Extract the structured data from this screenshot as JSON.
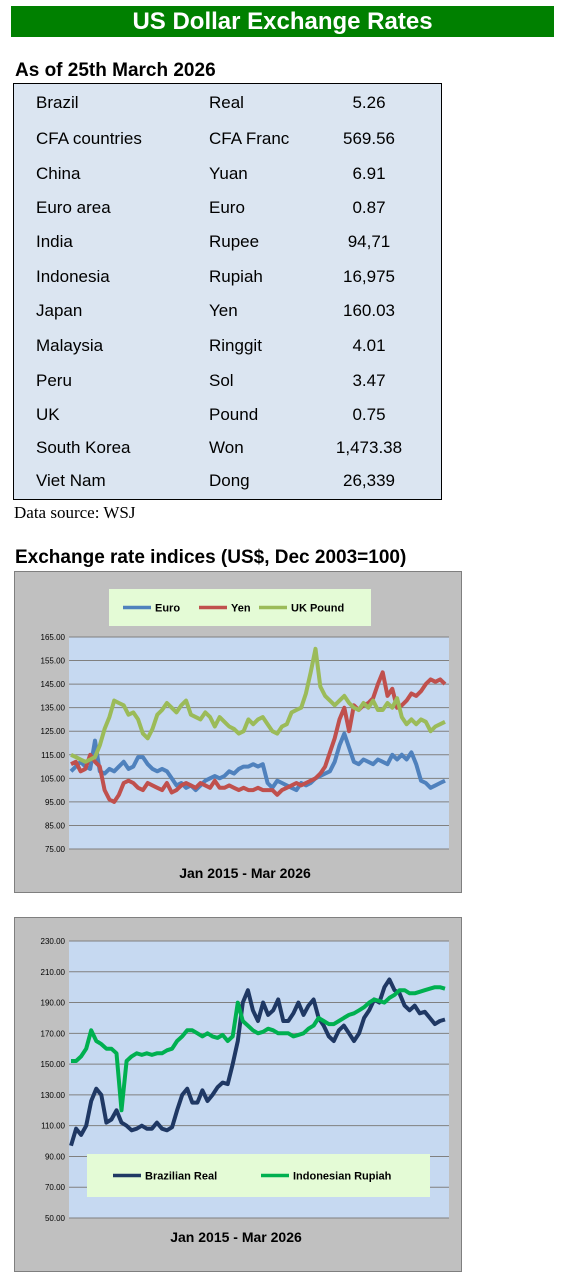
{
  "header": {
    "title": "US Dollar Exchange Rates"
  },
  "rates": {
    "as_of": "As of 25th March 2026",
    "rows": [
      {
        "country": "Brazil",
        "currency": "Real",
        "rate": "5.26"
      },
      {
        "country": "CFA countries",
        "currency": "CFA Franc",
        "rate": "569.56"
      },
      {
        "country": "China",
        "currency": "Yuan",
        "rate": "6.91"
      },
      {
        "country": "Euro area",
        "currency": "Euro",
        "rate": "0.87"
      },
      {
        "country": "India",
        "currency": "Rupee",
        "rate": "94,71"
      },
      {
        "country": "Indonesia",
        "currency": "Rupiah",
        "rate": "16,975"
      },
      {
        "country": "Japan",
        "currency": "Yen",
        "rate": "160.03"
      },
      {
        "country": "Malaysia",
        "currency": "Ringgit",
        "rate": "4.01"
      },
      {
        "country": "Peru",
        "currency": "Sol",
        "rate": "3.47"
      },
      {
        "country": "UK",
        "currency": "Pound",
        "rate": "0.75"
      },
      {
        "country": "South Korea",
        "currency": "Won",
        "rate": "1,473.38"
      },
      {
        "country": "Viet Nam",
        "currency": "Dong",
        "rate": "26,339"
      }
    ],
    "source": "Data source: WSJ"
  },
  "indices_header": "Exchange rate indices (US$, Dec 2003=100)",
  "chart_data": [
    {
      "type": "line",
      "xlabel": "Jan 2015 - Mar  2026",
      "ylim": [
        75,
        165
      ],
      "yticks": [
        75,
        85,
        95,
        105,
        115,
        125,
        135,
        145,
        155,
        165
      ],
      "grid": true,
      "legend_position": "top",
      "series": [
        {
          "name": "Euro",
          "color": "#4f81bd",
          "values": [
            108,
            110,
            112,
            110,
            109,
            121,
            108,
            107,
            109,
            108,
            110,
            112,
            109,
            110,
            114,
            114,
            111,
            109,
            108,
            109,
            108,
            105,
            102,
            103,
            101,
            102,
            100,
            102,
            104,
            105,
            106,
            105,
            106,
            108,
            107,
            109,
            110,
            110,
            111,
            110,
            111,
            103,
            101,
            104,
            103,
            102,
            101,
            100,
            103,
            102,
            103,
            105,
            106,
            107,
            108,
            112,
            119,
            124,
            118,
            112,
            111,
            113,
            112,
            111,
            113,
            112,
            111,
            115,
            113,
            115,
            113,
            116,
            111,
            104,
            103,
            101,
            102,
            103,
            104
          ]
        },
        {
          "name": "Yen",
          "color": "#c0504d",
          "values": [
            111,
            112,
            108,
            109,
            115,
            112,
            110,
            100,
            96,
            95,
            98,
            103,
            104,
            103,
            101,
            100,
            103,
            102,
            101,
            100,
            103,
            99,
            100,
            102,
            103,
            102,
            101,
            103,
            102,
            101,
            104,
            101,
            101,
            102,
            101,
            100,
            101,
            100,
            100,
            101,
            100,
            100,
            100,
            98,
            100,
            101,
            102,
            103,
            102,
            103,
            104,
            105,
            107,
            110,
            116,
            122,
            130,
            135,
            125,
            136,
            134,
            136,
            137,
            139,
            145,
            150,
            140,
            143,
            135,
            136,
            138,
            141,
            140,
            142,
            145,
            147,
            146,
            147,
            145
          ]
        },
        {
          "name": "UK Pound",
          "color": "#9bbb59",
          "values": [
            115,
            114,
            113,
            112,
            113,
            114,
            119,
            126,
            131,
            138,
            137,
            136,
            132,
            133,
            130,
            124,
            122,
            126,
            132,
            134,
            137,
            135,
            133,
            136,
            138,
            132,
            131,
            130,
            133,
            131,
            127,
            131,
            129,
            127,
            126,
            124,
            125,
            130,
            128,
            130,
            131,
            128,
            125,
            124,
            127,
            128,
            133,
            134,
            135,
            141,
            150,
            160,
            144,
            140,
            138,
            136,
            138,
            140,
            137,
            135,
            134,
            137,
            135,
            138,
            134,
            134,
            137,
            135,
            139,
            131,
            128,
            130,
            128,
            130,
            129,
            125,
            127,
            128,
            129
          ]
        }
      ]
    },
    {
      "type": "line",
      "xlabel": "Jan 2015 - Mar 2026",
      "ylim": [
        50,
        230
      ],
      "yticks": [
        50,
        70,
        90,
        110,
        130,
        150,
        170,
        190,
        210,
        230
      ],
      "grid": true,
      "legend_position": "bottom",
      "series": [
        {
          "name": "Brazilian Real",
          "color": "#1f3864",
          "values": [
            97,
            108,
            104,
            110,
            126,
            134,
            130,
            112,
            114,
            120,
            112,
            110,
            107,
            108,
            110,
            108,
            108,
            112,
            108,
            107,
            109,
            120,
            130,
            134,
            125,
            125,
            133,
            126,
            130,
            135,
            138,
            137,
            150,
            165,
            190,
            198,
            185,
            178,
            190,
            182,
            185,
            192,
            178,
            178,
            183,
            190,
            182,
            188,
            192,
            180,
            175,
            168,
            165,
            172,
            175,
            170,
            165,
            170,
            180,
            185,
            192,
            190,
            200,
            205,
            198,
            196,
            188,
            185,
            188,
            183,
            184,
            180,
            176,
            178,
            179
          ]
        },
        {
          "name": "Indonesian Rupiah",
          "color": "#00b050",
          "values": [
            152,
            152,
            155,
            160,
            172,
            165,
            163,
            160,
            160,
            157,
            120,
            152,
            155,
            157,
            156,
            157,
            156,
            157,
            157,
            159,
            160,
            165,
            168,
            172,
            172,
            170,
            168,
            170,
            168,
            167,
            169,
            165,
            168,
            190,
            178,
            175,
            172,
            170,
            171,
            173,
            172,
            170,
            170,
            170,
            168,
            169,
            170,
            173,
            175,
            180,
            178,
            176,
            176,
            178,
            180,
            182,
            183,
            185,
            187,
            190,
            192,
            191,
            190,
            193,
            195,
            198,
            198,
            196,
            196,
            197,
            198,
            199,
            200,
            200,
            199
          ]
        }
      ]
    }
  ]
}
